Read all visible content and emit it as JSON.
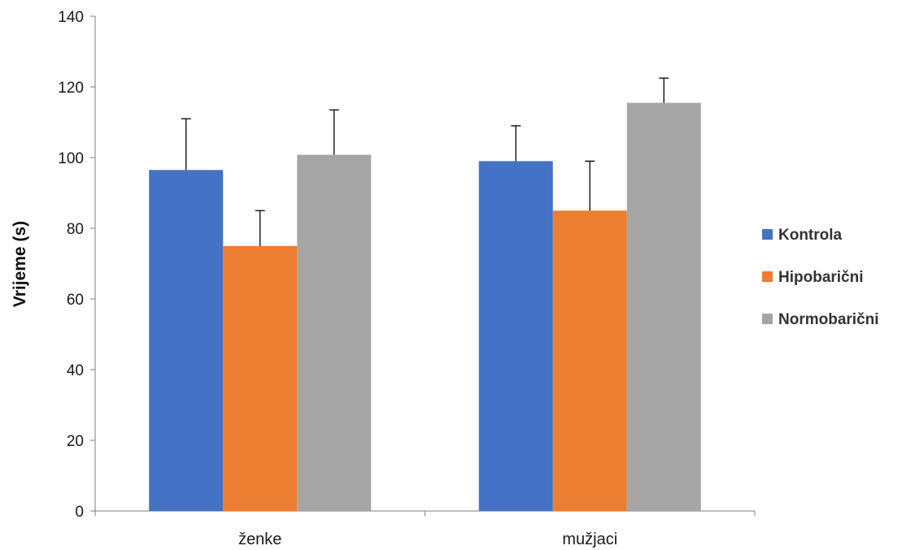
{
  "chart_data": {
    "type": "bar",
    "title": "",
    "xlabel": "",
    "ylabel": "Vrijeme (s)",
    "categories": [
      "ženke",
      "mužjaci"
    ],
    "series": [
      {
        "name": "Kontrola",
        "color": "#4472C4",
        "values": [
          96.5,
          99.0
        ],
        "errors": [
          14.5,
          10.0
        ]
      },
      {
        "name": "Hipobarični",
        "color": "#ED7D31",
        "values": [
          75.0,
          85.0
        ],
        "errors": [
          10.0,
          14.0
        ]
      },
      {
        "name": "Normobarični",
        "color": "#A5A5A5",
        "values": [
          100.8,
          115.5
        ],
        "errors": [
          12.7,
          7.0
        ]
      }
    ],
    "ylim": [
      0,
      140
    ],
    "yticks": [
      0,
      20,
      40,
      60,
      80,
      100,
      120,
      140
    ],
    "error_bars": "upper",
    "grid": false,
    "legend_position": "right"
  }
}
